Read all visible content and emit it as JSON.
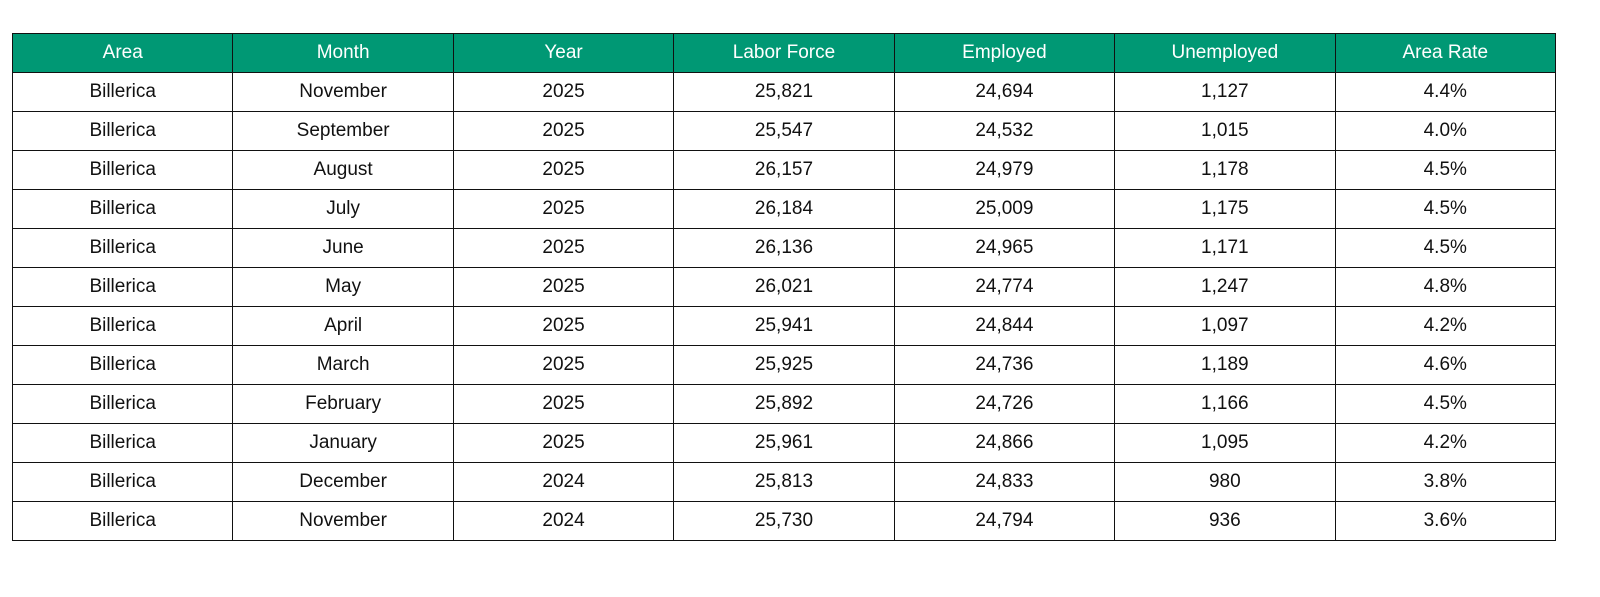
{
  "table": {
    "header": [
      "Area",
      "Month",
      "Year",
      "Labor Force",
      "Employed",
      "Unemployed",
      "Area Rate"
    ],
    "rows": [
      [
        "Billerica",
        "November",
        "2025",
        "25,821",
        "24,694",
        "1,127",
        "4.4%"
      ],
      [
        "Billerica",
        "September",
        "2025",
        "25,547",
        "24,532",
        "1,015",
        "4.0%"
      ],
      [
        "Billerica",
        "August",
        "2025",
        "26,157",
        "24,979",
        "1,178",
        "4.5%"
      ],
      [
        "Billerica",
        "July",
        "2025",
        "26,184",
        "25,009",
        "1,175",
        "4.5%"
      ],
      [
        "Billerica",
        "June",
        "2025",
        "26,136",
        "24,965",
        "1,171",
        "4.5%"
      ],
      [
        "Billerica",
        "May",
        "2025",
        "26,021",
        "24,774",
        "1,247",
        "4.8%"
      ],
      [
        "Billerica",
        "April",
        "2025",
        "25,941",
        "24,844",
        "1,097",
        "4.2%"
      ],
      [
        "Billerica",
        "March",
        "2025",
        "25,925",
        "24,736",
        "1,189",
        "4.6%"
      ],
      [
        "Billerica",
        "February",
        "2025",
        "25,892",
        "24,726",
        "1,166",
        "4.5%"
      ],
      [
        "Billerica",
        "January",
        "2025",
        "25,961",
        "24,866",
        "1,095",
        "4.2%"
      ],
      [
        "Billerica",
        "December",
        "2024",
        "25,813",
        "24,833",
        "980",
        "3.8%"
      ],
      [
        "Billerica",
        "November",
        "2024",
        "25,730",
        "24,794",
        "936",
        "3.6%"
      ]
    ]
  }
}
